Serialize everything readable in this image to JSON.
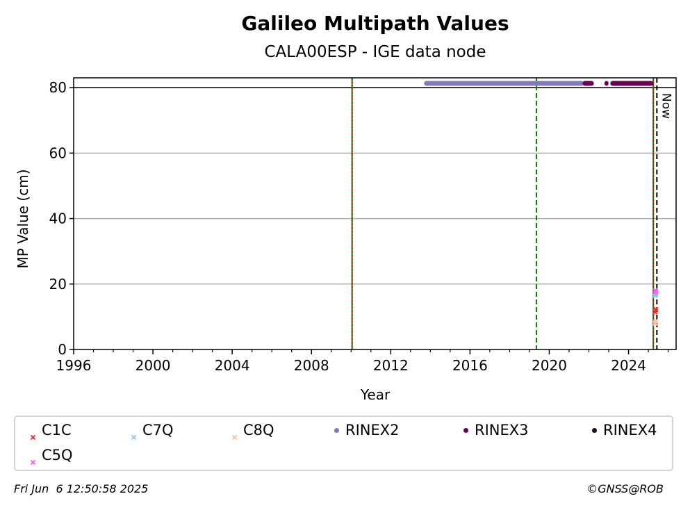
{
  "chart_data": {
    "type": "scatter",
    "title": "Galileo Multipath Values",
    "subtitle": "CALA00ESP - IGE data node",
    "xlabel": "Year",
    "ylabel": "MP Value (cm)",
    "xlim": [
      1996,
      2026.4
    ],
    "ylim": [
      0,
      83
    ],
    "x_ticks": [
      "1996",
      "2000",
      "2004",
      "2008",
      "2012",
      "2016",
      "2020",
      "2024"
    ],
    "y_ticks": [
      "0",
      "20",
      "40",
      "60",
      "80"
    ],
    "grid": "horizontal",
    "hline": 80,
    "vlines": [
      {
        "x": 2010.05,
        "color": "#008000",
        "style": "solid"
      },
      {
        "x": 2010.05,
        "color": "#ff0000",
        "style": "dotted"
      },
      {
        "x": 2019.35,
        "color": "#008000",
        "style": "dashed"
      },
      {
        "x": 2025.25,
        "color": "#008000",
        "style": "solid"
      },
      {
        "x": 2025.25,
        "color": "#ff0000",
        "style": "dotted"
      },
      {
        "x": 2025.43,
        "color": "#000000",
        "style": "dashed"
      }
    ],
    "now_label": "Now",
    "series": [
      {
        "name": "C1C",
        "color": "#e8332a",
        "marker": "x",
        "points": [
          [
            2025.34,
            11.5
          ],
          [
            2025.38,
            12.2
          ]
        ]
      },
      {
        "name": "C7Q",
        "color": "#98c6e8",
        "marker": "x",
        "points": [
          [
            2025.34,
            16.5
          ],
          [
            2025.38,
            17.0
          ]
        ]
      },
      {
        "name": "C8Q",
        "color": "#f7c4a0",
        "marker": "x",
        "points": [
          [
            2025.34,
            8.0
          ],
          [
            2025.38,
            8.6
          ]
        ]
      },
      {
        "name": "RINEX2",
        "color": "#8579bd",
        "marker": "o",
        "segments": [
          [
            2013.75,
            2021.75
          ]
        ],
        "y": 81.3
      },
      {
        "name": "RINEX3",
        "color": "#680054",
        "marker": "o",
        "segments": [
          [
            2021.75,
            2022.25
          ],
          [
            2022.85,
            2022.95
          ],
          [
            2023.15,
            2025.25
          ]
        ],
        "y": 81.3
      },
      {
        "name": "RINEX4",
        "color": "#1a0a1f",
        "marker": "o",
        "points": []
      },
      {
        "name": "C5Q",
        "color": "#f065f0",
        "marker": "x",
        "points": [
          [
            2025.36,
            18.0
          ],
          [
            2025.38,
            17.5
          ]
        ]
      }
    ]
  },
  "footer": {
    "timestamp": "Fri Jun  6 12:50:58 2025",
    "credit": "©GNSS@ROB"
  }
}
